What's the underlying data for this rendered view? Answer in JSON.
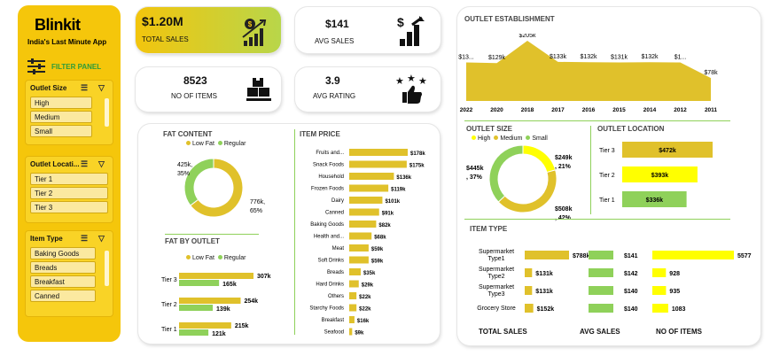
{
  "brand": {
    "name": "Blinkit",
    "tagline": "India's Last Minute App",
    "filter_panel": "FILTER PANEL"
  },
  "slicers": [
    {
      "title": "Outlet Size",
      "items": [
        "High",
        "Medium",
        "Small"
      ]
    },
    {
      "title": "Outlet Locati...",
      "items": [
        "Tier 1",
        "Tier 2",
        "Tier 3"
      ]
    },
    {
      "title": "Item Type",
      "items": [
        "Baking Goods",
        "Breads",
        "Breakfast",
        "Canned"
      ]
    }
  ],
  "kpis": {
    "total_sales": {
      "value": "$1.20M",
      "label": "TOTAL SALES"
    },
    "avg_sales": {
      "value": "$141",
      "label": "AVG SALES"
    },
    "no_of_items": {
      "value": "8523",
      "label": "NO OF ITEMS"
    },
    "avg_rating": {
      "value": "3.9",
      "label": "AVG RATING"
    }
  },
  "colors": {
    "yellow": "#e0c12b",
    "green": "#8fd15a",
    "bright_yellow": "#ffff00",
    "sidebar": "#f5c60b"
  },
  "chart_data": [
    {
      "id": "fat_content",
      "type": "pie",
      "title": "FAT CONTENT",
      "legend": [
        "Low Fat",
        "Regular"
      ],
      "slices": [
        {
          "name": "Low Fat",
          "value": 776,
          "label": "776k,",
          "pct": "65%"
        },
        {
          "name": "Regular",
          "value": 425,
          "label": "425k,",
          "pct": "35%"
        }
      ]
    },
    {
      "id": "fat_by_outlet",
      "type": "bar",
      "title": "FAT BY OUTLET",
      "legend": [
        "Low Fat",
        "Regular"
      ],
      "categories": [
        "Tier 3",
        "Tier 2",
        "Tier 1"
      ],
      "series": [
        {
          "name": "Low Fat",
          "values": [
            307,
            254,
            215
          ],
          "labels": [
            "307k",
            "254k",
            "215k"
          ]
        },
        {
          "name": "Regular",
          "values": [
            165,
            139,
            121
          ],
          "labels": [
            "165k",
            "139k",
            "121k"
          ]
        }
      ]
    },
    {
      "id": "item_price",
      "type": "bar",
      "title": "ITEM PRICE",
      "categories": [
        "Fruits and...",
        "Snack Foods",
        "Household",
        "Frozen Foods",
        "Dairy",
        "Canned",
        "Baking Goods",
        "Health and...",
        "Meat",
        "Soft Drinks",
        "Breads",
        "Hard Drinks",
        "Others",
        "Starchy Foods",
        "Breakfast",
        "Seafood"
      ],
      "values": [
        178,
        175,
        136,
        119,
        101,
        91,
        82,
        68,
        59,
        59,
        35,
        29,
        22,
        22,
        16,
        9
      ],
      "labels": [
        "$178k",
        "$175k",
        "$136k",
        "$119k",
        "$101k",
        "$91k",
        "$82k",
        "$68k",
        "$59k",
        "$59k",
        "$35k",
        "$29k",
        "$22k",
        "$22k",
        "$16k",
        "$9k"
      ]
    },
    {
      "id": "outlet_establishment",
      "type": "area",
      "title": "OUTLET ESTABLISHMENT",
      "x": [
        "2022",
        "2020",
        "2018",
        "2017",
        "2016",
        "2015",
        "2014",
        "2012",
        "2011"
      ],
      "values": [
        131,
        129,
        205,
        133,
        132,
        131,
        132,
        131,
        78
      ],
      "labels": [
        "$13...",
        "$129k",
        "$205k",
        "$133k",
        "$132k",
        "$131k",
        "$132k",
        "$1...",
        "$78k"
      ]
    },
    {
      "id": "outlet_size",
      "type": "pie",
      "title": "OUTLET SIZE",
      "legend": [
        "High",
        "Medium",
        "Small"
      ],
      "slices": [
        {
          "name": "High",
          "value": 249,
          "label": "$249k",
          "pct": ", 21%"
        },
        {
          "name": "Medium",
          "value": 508,
          "label": "$508k",
          "pct": ", 42%"
        },
        {
          "name": "Small",
          "value": 445,
          "label": "$445k",
          "pct": ", 37%"
        }
      ]
    },
    {
      "id": "outlet_location",
      "type": "bar",
      "title": "OUTLET LOCATION",
      "categories": [
        "Tier 3",
        "Tier 2",
        "Tier 1"
      ],
      "values": [
        472,
        393,
        336
      ],
      "labels": [
        "$472k",
        "$393k",
        "$336k"
      ]
    },
    {
      "id": "item_type",
      "type": "table",
      "title": "ITEM TYPE",
      "rows": [
        "Supermarket Type1",
        "Supermarket Type2",
        "Supermarket Type3",
        "Grocery Store"
      ],
      "row_labels": [
        [
          "Supermarket",
          "Type1"
        ],
        [
          "Supermarket",
          "Type2"
        ],
        [
          "Supermarket",
          "Type3"
        ],
        [
          "Grocery Store"
        ]
      ],
      "columns": [
        "TOTAL SALES",
        "AVG SALES",
        "NO OF ITEMS"
      ],
      "total_sales": [
        788,
        131,
        131,
        152
      ],
      "total_sales_labels": [
        "$788k",
        "$131k",
        "$131k",
        "$152k"
      ],
      "avg_sales": [
        141,
        142,
        140,
        140
      ],
      "avg_sales_labels": [
        "$141",
        "$142",
        "$140",
        "$140"
      ],
      "items": [
        5577,
        928,
        935,
        1083
      ],
      "items_labels": [
        "5577",
        "928",
        "935",
        "1083"
      ]
    }
  ]
}
